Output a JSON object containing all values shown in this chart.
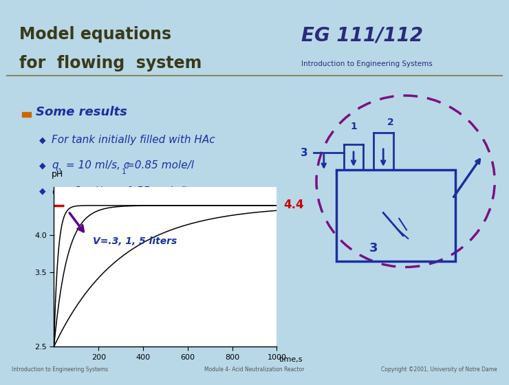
{
  "title_line1": "Model equations",
  "title_line2": "for  flowing  system",
  "title_color": "#3A3A1A",
  "header_bg": "#C8C09A",
  "body_bg": "#B8D8E8",
  "bullet_header": "Some results",
  "bullet_header_color": "#1A2FA0",
  "bullet_square_color": "#CC6600",
  "bullets": [
    "For tank initially filled with HAc",
    "q_1 = 10 ml/s, c_1=0.85 mole/l",
    "q_2= 3 ml/s, c_2=0.55 mole/l"
  ],
  "bullet_color": "#1A2FA0",
  "diamond_color": "#1A2FA0",
  "plot_bg": "#FFFFFF",
  "plot_border": "#000000",
  "xlabel": "time,s",
  "ylabel": "pH",
  "xlim": [
    0,
    1000
  ],
  "ylim": [
    2.5,
    4.65
  ],
  "xticks": [
    200,
    400,
    600,
    800,
    1000
  ],
  "yticks": [
    3.5,
    4.0
  ],
  "ytick_25": 2.5,
  "asymptote": 4.4,
  "asymptote_label": "4.4",
  "asymptote_color": "#CC0000",
  "volumes": [
    0.3,
    1.0,
    5.0
  ],
  "tau_scale": 60,
  "annotation_text": "V=.3, 1, 5 liters",
  "annotation_color": "#1A2FA0",
  "curve_color": "#000000",
  "arrow_color": "#5B0080",
  "tank_color": "#1A2FA0",
  "dashed_color": "#7B1080",
  "footer_left": "Introduction to Engineering Systems",
  "footer_mid": "Module 4- Acid Neutralization Reactor",
  "footer_right": "Copyright ©2001, University of Notre Dame",
  "footer_color": "#555555",
  "footer_bg": "#B8D8E8"
}
